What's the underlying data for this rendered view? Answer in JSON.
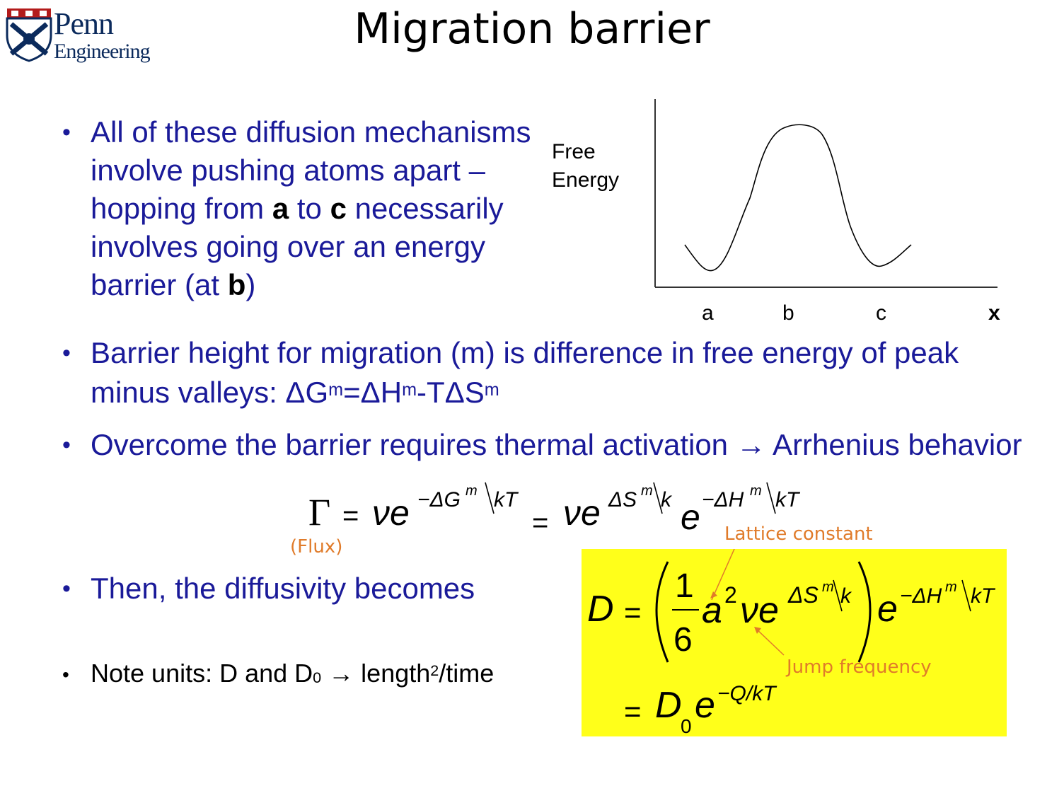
{
  "header": {
    "logo_line1": "Penn",
    "logo_line2": "Engineering",
    "title": "Migration barrier"
  },
  "bullets": {
    "b1": {
      "part1": "All of these diffusion mechanisms involve pushing atoms apart – hopping from ",
      "bold1": "a",
      "part2": " to ",
      "bold2": "c",
      "part3": " necessarily involves going over an energy barrier (at ",
      "bold3": "b",
      "part4": ")"
    },
    "b2": {
      "text": "Barrier height for migration (m) is difference in free energy of peak minus valleys: ΔG",
      "sup1": "m",
      "eq": "=ΔH",
      "sup2": "m",
      "minus": "-TΔS",
      "sup3": "m"
    },
    "b3": {
      "text": "Overcome the barrier requires thermal activation → Arrhenius behavior"
    },
    "b4": {
      "text": "Then, the diffusivity becomes"
    },
    "b5": {
      "text": "Note units:  D and D",
      "sub": "0",
      "arrow": " → length",
      "sup": "2",
      "tail": "/time"
    }
  },
  "graph": {
    "ylabel_line1": "Free",
    "ylabel_line2": "Energy",
    "xticks": [
      "a",
      "b",
      "c"
    ],
    "xlabel": "x"
  },
  "annotations": {
    "flux": "(Flux)",
    "lattice": "Lattice constant",
    "jump": "Jump frequency"
  },
  "equations": {
    "gamma": {
      "lhs": "Γ",
      "eq": "=",
      "nu_e": "νe",
      "exp1": "−ΔG",
      "exp1_sup": "m",
      "exp1_den": "kT",
      "eq2": "=",
      "nu_e2": "νe",
      "exp2": "ΔS",
      "exp2_sup": "m",
      "exp2_den": "k",
      "e3": "e",
      "exp3": "−ΔH",
      "exp3_sup": "m",
      "exp3_den": "kT"
    },
    "diffusivity": {
      "lhs": "D",
      "eq": "=",
      "num": "1",
      "den": "6",
      "a": "a",
      "a_sup": "2",
      "nu_e": "νe",
      "exp1": "ΔS",
      "exp1_sup": "m",
      "exp1_den": "k",
      "e2": "e",
      "exp2": "−ΔH",
      "exp2_sup": "m",
      "exp2_den": "kT",
      "eq2": "=",
      "D0": "D",
      "D0_sub": "0",
      "e3": "e",
      "exp3": "−Q/kT"
    }
  },
  "colors": {
    "bullet_text": "#1a1a99",
    "annotation": "#e07b2a",
    "highlight": "#ffff1a"
  }
}
